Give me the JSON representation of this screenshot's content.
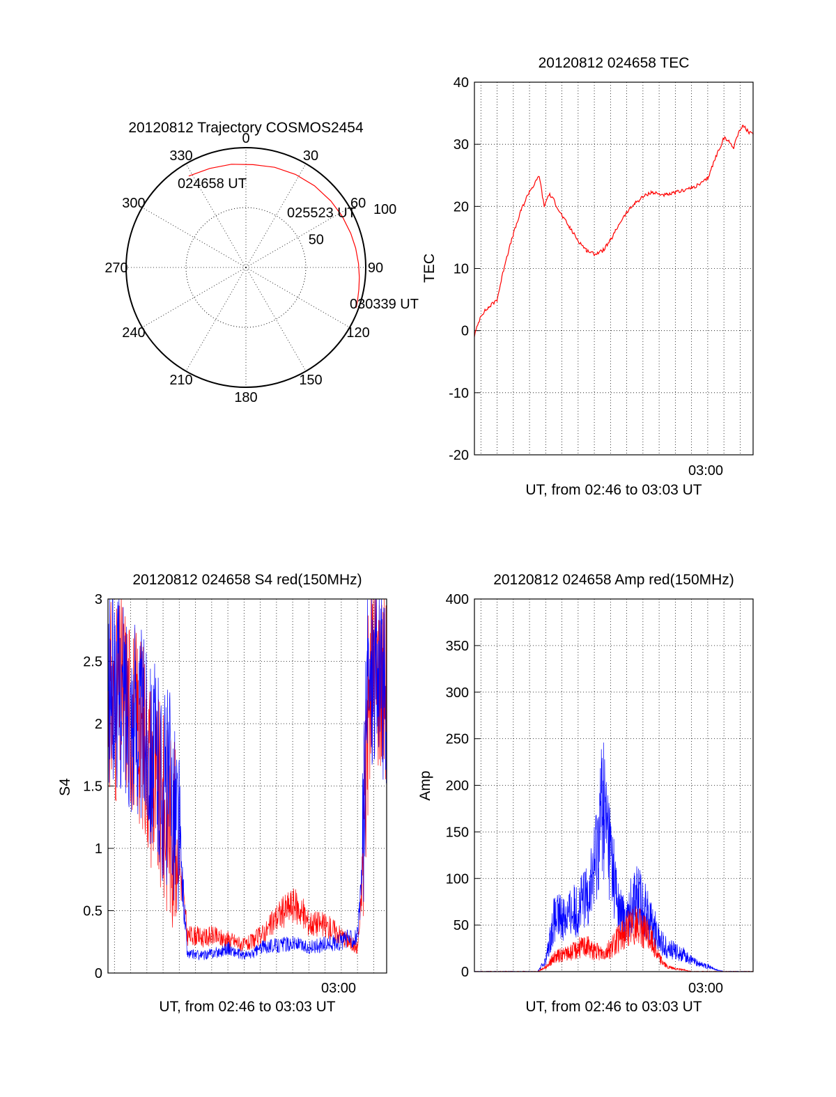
{
  "colors": {
    "red": "#ff0000",
    "blue": "#0000ff",
    "axis": "#000000",
    "background": "#ffffff"
  },
  "chart_data": [
    {
      "id": "trajectory",
      "type": "scatter",
      "projection": "polar",
      "title": "20120812 Trajectory COSMOS2454",
      "azimuth_labels": [
        "0",
        "30",
        "60",
        "90",
        "120",
        "150",
        "180",
        "210",
        "240",
        "270",
        "300",
        "330"
      ],
      "radial_labels": [
        "50",
        "100"
      ],
      "radial_range": [
        0,
        100
      ],
      "grid": true,
      "track": {
        "color": "#ff0000",
        "azimuth_deg": [
          328,
          340,
          352,
          4,
          16,
          28,
          40,
          52,
          62,
          72,
          80,
          88,
          95,
          101,
          106,
          110
        ],
        "radius": [
          90,
          88,
          87,
          86,
          87,
          88,
          89,
          90,
          91,
          92,
          93,
          94,
          95,
          96,
          97,
          98
        ]
      },
      "annotations": [
        "024658 UT",
        "025523 UT",
        "030339 UT"
      ]
    },
    {
      "id": "tec",
      "type": "line",
      "title": "20120812 024658 TEC",
      "xlabel": "UT, from 02:46 to 03:03 UT",
      "ylabel": "TEC",
      "x_tick_labels": [
        "03:00"
      ],
      "y_ticks": [
        -20,
        -10,
        0,
        10,
        20,
        30,
        40
      ],
      "xlim": [
        2.6,
        19.8
      ],
      "ylim": [
        -20,
        40
      ],
      "grid": true,
      "series": [
        {
          "color": "#ff0000",
          "x": [
            2.6,
            3.0,
            3.5,
            4.0,
            4.5,
            5.0,
            5.5,
            6.0,
            6.3,
            6.6,
            6.9,
            7.2,
            7.5,
            8.0,
            8.5,
            9.0,
            9.5,
            10.0,
            10.5,
            11.0,
            11.3,
            11.6,
            12.0,
            12.5,
            13.0,
            13.5,
            14.0,
            14.5,
            15.0,
            15.5,
            16.0,
            16.5,
            17.0,
            17.5,
            18.0,
            18.3,
            18.6,
            18.9,
            19.2,
            19.5,
            19.8
          ],
          "y": [
            -0.8,
            2.5,
            3.8,
            5.0,
            11.0,
            15.5,
            19.5,
            22.5,
            23.5,
            25.0,
            20.0,
            22.0,
            21.0,
            18.5,
            16.5,
            14.5,
            13.0,
            12.3,
            12.8,
            14.5,
            16.0,
            17.5,
            19.0,
            20.5,
            21.5,
            22.3,
            22.0,
            21.8,
            22.2,
            22.6,
            23.0,
            23.5,
            24.5,
            28.0,
            31.0,
            30.5,
            29.5,
            32.0,
            33.0,
            32.0,
            31.5
          ]
        }
      ]
    },
    {
      "id": "s4",
      "type": "line",
      "title": "20120812 024658 S4 red(150MHz)",
      "xlabel": "UT, from 02:46 to 03:03 UT",
      "ylabel": "S4",
      "x_tick_labels": [
        "03:00"
      ],
      "y_ticks": [
        0,
        0.5,
        1,
        1.5,
        2,
        2.5,
        3
      ],
      "y_tick_labels": [
        "0",
        "0.5",
        "1",
        "1.5",
        "2",
        "2.5",
        "3"
      ],
      "xlim": [
        2.6,
        19.8
      ],
      "ylim": [
        0,
        3
      ],
      "grid": true,
      "series": [
        {
          "color": "#ff0000",
          "x": [
            2.6,
            3.0,
            3.5,
            4.0,
            4.5,
            5.0,
            5.5,
            6.0,
            6.5,
            7.0,
            7.5,
            8.0,
            8.5,
            9.0,
            9.5,
            10.0,
            10.5,
            11.0,
            11.5,
            12.0,
            12.5,
            13.0,
            13.5,
            14.0,
            14.5,
            15.0,
            15.5,
            16.0,
            16.5,
            17.0,
            17.5,
            17.8,
            18.0,
            18.2,
            18.4,
            18.6,
            19.0,
            19.4,
            19.8
          ],
          "y": [
            2.3,
            2.1,
            2.3,
            2.1,
            2.0,
            1.8,
            1.5,
            1.3,
            1.2,
            0.9,
            0.3,
            0.3,
            0.28,
            0.3,
            0.28,
            0.27,
            0.25,
            0.22,
            0.25,
            0.3,
            0.35,
            0.45,
            0.5,
            0.55,
            0.5,
            0.4,
            0.4,
            0.38,
            0.35,
            0.3,
            0.25,
            0.22,
            0.2,
            0.5,
            1.2,
            2.0,
            2.5,
            2.4,
            2.3
          ]
        },
        {
          "color": "#0000ff",
          "x": [
            2.6,
            3.0,
            3.5,
            4.0,
            4.5,
            5.0,
            5.5,
            6.0,
            6.5,
            7.0,
            7.5,
            8.0,
            8.5,
            9.0,
            9.5,
            10.0,
            10.5,
            11.0,
            11.5,
            12.0,
            12.5,
            13.0,
            13.5,
            14.0,
            14.5,
            15.0,
            15.5,
            16.0,
            16.5,
            17.0,
            17.5,
            17.8,
            18.0,
            18.2,
            18.4,
            18.6,
            19.0,
            19.4,
            19.8
          ],
          "y": [
            2.2,
            2.3,
            2.2,
            2.1,
            2.0,
            1.9,
            1.7,
            1.5,
            1.5,
            1.1,
            0.15,
            0.15,
            0.14,
            0.16,
            0.17,
            0.2,
            0.16,
            0.14,
            0.15,
            0.2,
            0.22,
            0.22,
            0.23,
            0.24,
            0.22,
            0.2,
            0.22,
            0.23,
            0.24,
            0.25,
            0.28,
            0.28,
            0.3,
            0.6,
            1.4,
            2.2,
            2.5,
            2.4,
            2.2
          ]
        }
      ]
    },
    {
      "id": "amp",
      "type": "line",
      "title": "20120812 024658 Amp red(150MHz)",
      "xlabel": "UT, from 02:46 to 03:03 UT",
      "ylabel": "Amp",
      "x_tick_labels": [
        "03:00"
      ],
      "y_ticks": [
        0,
        50,
        100,
        150,
        200,
        250,
        300,
        350,
        400
      ],
      "xlim": [
        2.6,
        19.8
      ],
      "ylim": [
        0,
        400
      ],
      "grid": true,
      "series": [
        {
          "color": "#0000ff",
          "x": [
            2.6,
            3.5,
            4.5,
            5.5,
            6.5,
            7.0,
            7.5,
            8.0,
            8.5,
            9.0,
            9.5,
            10.0,
            10.5,
            11.0,
            11.5,
            12.0,
            12.5,
            13.0,
            13.5,
            14.0,
            14.5,
            15.0,
            15.5,
            16.0,
            16.5,
            17.0,
            17.5,
            18.0,
            19.0,
            19.8
          ],
          "y": [
            0,
            0,
            0,
            0,
            0,
            12,
            55,
            60,
            62,
            68,
            80,
            110,
            185,
            130,
            65,
            55,
            85,
            70,
            55,
            35,
            25,
            22,
            18,
            12,
            8,
            6,
            2,
            0,
            0,
            0
          ]
        },
        {
          "color": "#ff0000",
          "x": [
            2.6,
            3.5,
            4.5,
            5.5,
            6.5,
            7.0,
            7.5,
            8.0,
            8.5,
            9.0,
            9.5,
            10.0,
            10.5,
            11.0,
            11.5,
            12.0,
            12.5,
            13.0,
            13.5,
            14.0,
            14.5,
            15.0,
            15.5,
            16.0,
            16.5,
            17.0,
            17.5,
            18.0,
            19.0,
            19.8
          ],
          "y": [
            0,
            0,
            0,
            0,
            0,
            5,
            15,
            18,
            20,
            25,
            28,
            22,
            20,
            25,
            35,
            45,
            50,
            45,
            35,
            15,
            5,
            3,
            2,
            0,
            0,
            0,
            0,
            0,
            0,
            0
          ]
        }
      ]
    }
  ]
}
